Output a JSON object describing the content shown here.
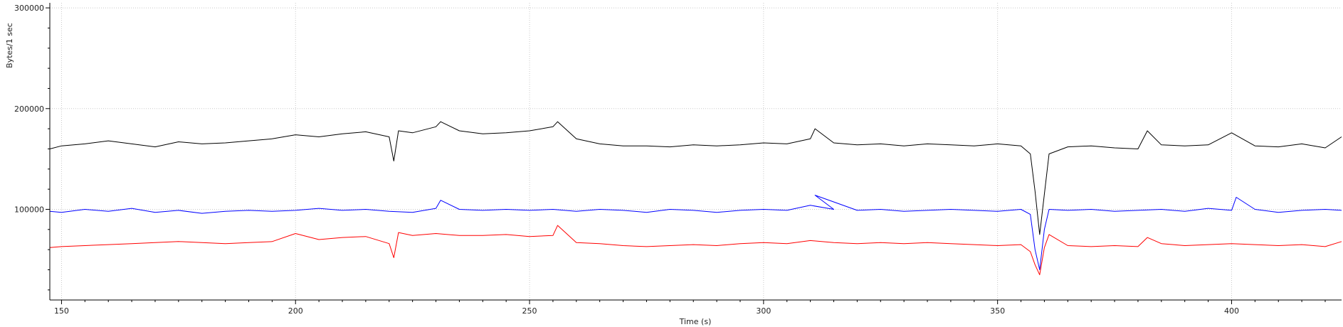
{
  "chart_data": {
    "type": "line",
    "title": "",
    "xlabel": "Time (s)",
    "ylabel": "Bytes/1 sec",
    "xlim": [
      147.5,
      423.5
    ],
    "ylim": [
      10000,
      305000
    ],
    "x_ticks": [
      150,
      200,
      250,
      300,
      350,
      400
    ],
    "x_tick_labels": [
      "150",
      "200",
      "250",
      "300",
      "350",
      "400"
    ],
    "y_ticks": [
      100000,
      200000,
      300000
    ],
    "y_tick_labels": [
      "100000",
      "200000",
      "300000"
    ],
    "grid": true,
    "legend": "none",
    "series": [
      {
        "color": "#000000",
        "x": [
          147.5,
          150,
          155,
          160,
          165,
          170,
          175,
          180,
          185,
          190,
          195,
          200,
          205,
          210,
          215,
          220,
          221,
          222,
          225,
          230,
          231,
          235,
          240,
          245,
          250,
          255,
          256,
          260,
          265,
          270,
          275,
          280,
          285,
          290,
          295,
          300,
          305,
          310,
          311,
          315,
          320,
          325,
          330,
          335,
          340,
          345,
          350,
          355,
          357,
          358,
          359,
          360,
          361,
          365,
          370,
          375,
          380,
          382,
          385,
          390,
          395,
          400,
          405,
          410,
          415,
          420,
          423.5
        ],
        "y": [
          160000,
          163000,
          165000,
          168000,
          165000,
          162000,
          167000,
          165000,
          166000,
          168000,
          170000,
          174000,
          172000,
          175000,
          177000,
          172000,
          148000,
          178000,
          176000,
          182000,
          187000,
          178000,
          175000,
          176000,
          178000,
          182000,
          187000,
          170000,
          165000,
          163000,
          163000,
          162000,
          164000,
          163000,
          164000,
          166000,
          165000,
          170000,
          180000,
          166000,
          164000,
          165000,
          163000,
          165000,
          164000,
          163000,
          165000,
          163000,
          155000,
          118000,
          75000,
          115000,
          155000,
          162000,
          163000,
          161000,
          160000,
          178000,
          164000,
          163000,
          164000,
          176000,
          163000,
          162000,
          165000,
          161000,
          172000
        ]
      },
      {
        "color": "#0000ff",
        "x": [
          147.5,
          150,
          155,
          160,
          165,
          170,
          175,
          180,
          185,
          190,
          195,
          200,
          205,
          210,
          215,
          220,
          225,
          230,
          231,
          235,
          240,
          245,
          250,
          255,
          260,
          265,
          270,
          275,
          280,
          285,
          290,
          295,
          300,
          305,
          310,
          315,
          311,
          320,
          325,
          330,
          335,
          340,
          345,
          350,
          355,
          357,
          358,
          359,
          360,
          361,
          365,
          370,
          375,
          380,
          385,
          390,
          395,
          400,
          401,
          405,
          410,
          415,
          420,
          423.5
        ],
        "y": [
          98000,
          97000,
          100000,
          98000,
          101000,
          97000,
          99000,
          96000,
          98000,
          99000,
          98000,
          99000,
          101000,
          99000,
          100000,
          98000,
          97000,
          101000,
          109000,
          100000,
          99000,
          100000,
          99000,
          100000,
          98000,
          100000,
          99000,
          97000,
          100000,
          99000,
          97000,
          99000,
          100000,
          99000,
          104000,
          100000,
          114000,
          99000,
          100000,
          98000,
          99000,
          100000,
          99000,
          98000,
          100000,
          95000,
          60000,
          40000,
          80000,
          100000,
          99000,
          100000,
          98000,
          99000,
          100000,
          98000,
          101000,
          99000,
          112000,
          100000,
          97000,
          99000,
          100000,
          99000
        ]
      },
      {
        "color": "#ff0000",
        "x": [
          147.5,
          150,
          155,
          160,
          165,
          170,
          175,
          180,
          185,
          190,
          195,
          200,
          205,
          210,
          215,
          220,
          221,
          222,
          225,
          230,
          235,
          240,
          245,
          250,
          255,
          256,
          260,
          265,
          270,
          275,
          280,
          285,
          290,
          295,
          300,
          305,
          310,
          315,
          320,
          325,
          330,
          335,
          340,
          345,
          350,
          355,
          357,
          358,
          359,
          360,
          361,
          365,
          370,
          375,
          380,
          382,
          385,
          390,
          395,
          400,
          405,
          410,
          415,
          420,
          423.5
        ],
        "y": [
          62000,
          63000,
          64000,
          65000,
          66000,
          67000,
          68000,
          67000,
          66000,
          67000,
          68000,
          76000,
          70000,
          72000,
          73000,
          66000,
          52000,
          77000,
          74000,
          76000,
          74000,
          74000,
          75000,
          73000,
          74000,
          84000,
          67000,
          66000,
          64000,
          63000,
          64000,
          65000,
          64000,
          66000,
          67000,
          66000,
          69000,
          67000,
          66000,
          67000,
          66000,
          67000,
          66000,
          65000,
          64000,
          65000,
          58000,
          45000,
          35000,
          62000,
          75000,
          64000,
          63000,
          64000,
          63000,
          72000,
          66000,
          64000,
          65000,
          66000,
          65000,
          64000,
          65000,
          63000,
          68000
        ]
      }
    ]
  }
}
